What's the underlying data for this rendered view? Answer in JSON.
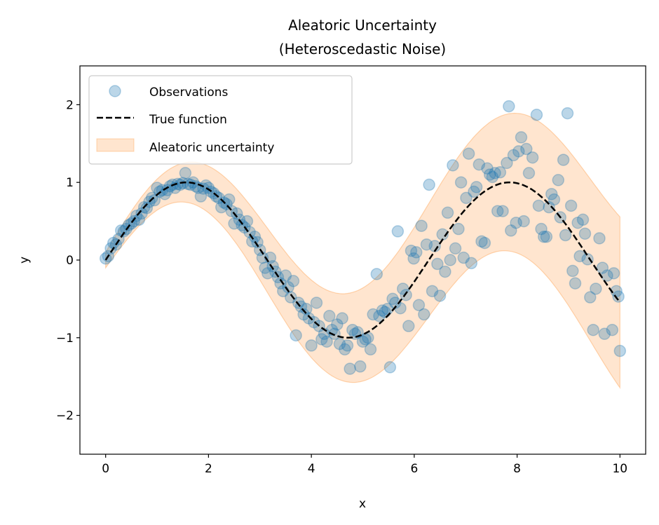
{
  "chart_data": {
    "type": "scatter",
    "title": "Aleatoric Uncertainty",
    "subtitle": "(Heteroscedastic Noise)",
    "xlabel": "x",
    "ylabel": "y",
    "xlim": [
      -0.5,
      10.5
    ],
    "ylim": [
      -2.5,
      2.5
    ],
    "xticks": [
      0,
      2,
      4,
      6,
      8,
      10
    ],
    "xtick_labels": [
      "0",
      "2",
      "4",
      "6",
      "8",
      "10"
    ],
    "yticks": [
      -2,
      -1,
      0,
      1,
      2
    ],
    "ytick_labels": [
      "−2",
      "−1",
      "0",
      "1",
      "2"
    ],
    "grid": false,
    "legend": {
      "placement": "top-left",
      "entries": [
        "Observations",
        "True function",
        "Aleatoric uncertainty"
      ]
    },
    "colors": {
      "observations": "#1f77b4",
      "true_function": "#000000",
      "band": "#ff7f0e"
    },
    "true_function": "sin(x)",
    "band": {
      "description_halfwidth": "0.1 + 0.1*x",
      "center": "sin(x)"
    },
    "observations": [
      [
        0,
        0.02
      ],
      [
        0.05,
        0.05
      ],
      [
        0.1,
        0.15
      ],
      [
        0.15,
        0.22
      ],
      [
        0.2,
        0.2
      ],
      [
        0.25,
        0.27
      ],
      [
        0.3,
        0.38
      ],
      [
        0.35,
        0.37
      ],
      [
        0.4,
        0.4
      ],
      [
        0.45,
        0.45
      ],
      [
        0.5,
        0.47
      ],
      [
        0.55,
        0.5
      ],
      [
        0.6,
        0.57
      ],
      [
        0.65,
        0.52
      ],
      [
        0.7,
        0.6
      ],
      [
        0.75,
        0.68
      ],
      [
        0.8,
        0.67
      ],
      [
        0.85,
        0.75
      ],
      [
        0.9,
        0.8
      ],
      [
        0.95,
        0.77
      ],
      [
        1.0,
        0.93
      ],
      [
        1.05,
        0.88
      ],
      [
        1.1,
        0.9
      ],
      [
        1.15,
        0.85
      ],
      [
        1.2,
        0.9
      ],
      [
        1.25,
        0.95
      ],
      [
        1.3,
        0.97
      ],
      [
        1.35,
        0.93
      ],
      [
        1.4,
        0.98
      ],
      [
        1.45,
        0.97
      ],
      [
        1.5,
        0.99
      ],
      [
        1.55,
        1.12
      ],
      [
        1.6,
        0.98
      ],
      [
        1.65,
        0.97
      ],
      [
        1.7,
        1.0
      ],
      [
        1.75,
        0.95
      ],
      [
        1.8,
        0.93
      ],
      [
        1.85,
        0.82
      ],
      [
        1.9,
        0.92
      ],
      [
        1.95,
        0.96
      ],
      [
        2.0,
        0.93
      ],
      [
        2.05,
        0.88
      ],
      [
        2.1,
        0.86
      ],
      [
        2.15,
        0.82
      ],
      [
        2.2,
        0.8
      ],
      [
        2.25,
        0.68
      ],
      [
        2.3,
        0.74
      ],
      [
        2.35,
        0.72
      ],
      [
        2.4,
        0.78
      ],
      [
        2.45,
        0.63
      ],
      [
        2.5,
        0.47
      ],
      [
        2.55,
        0.6
      ],
      [
        2.6,
        0.52
      ],
      [
        2.65,
        0.45
      ],
      [
        2.7,
        0.42
      ],
      [
        2.75,
        0.5
      ],
      [
        2.8,
        0.36
      ],
      [
        2.85,
        0.24
      ],
      [
        2.9,
        0.3
      ],
      [
        2.95,
        0.23
      ],
      [
        3.0,
        0.13
      ],
      [
        3.05,
        0.03
      ],
      [
        3.1,
        -0.1
      ],
      [
        3.15,
        -0.17
      ],
      [
        3.2,
        0.03
      ],
      [
        3.25,
        -0.08
      ],
      [
        3.3,
        -0.15
      ],
      [
        3.35,
        -0.22
      ],
      [
        3.4,
        -0.3
      ],
      [
        3.45,
        -0.4
      ],
      [
        3.5,
        -0.2
      ],
      [
        3.55,
        -0.35
      ],
      [
        3.6,
        -0.48
      ],
      [
        3.65,
        -0.27
      ],
      [
        3.7,
        -0.97
      ],
      [
        3.75,
        -0.55
      ],
      [
        3.8,
        -0.6
      ],
      [
        3.85,
        -0.7
      ],
      [
        3.9,
        -0.63
      ],
      [
        3.95,
        -0.75
      ],
      [
        4.0,
        -1.1
      ],
      [
        4.05,
        -0.8
      ],
      [
        4.1,
        -0.55
      ],
      [
        4.15,
        -0.85
      ],
      [
        4.2,
        -1.02
      ],
      [
        4.25,
        -0.95
      ],
      [
        4.3,
        -1.05
      ],
      [
        4.35,
        -0.72
      ],
      [
        4.4,
        -0.9
      ],
      [
        4.45,
        -0.95
      ],
      [
        4.5,
        -0.83
      ],
      [
        4.55,
        -1.08
      ],
      [
        4.6,
        -0.75
      ],
      [
        4.65,
        -1.15
      ],
      [
        4.7,
        -1.1
      ],
      [
        4.75,
        -1.4
      ],
      [
        4.8,
        -0.9
      ],
      [
        4.85,
        -0.95
      ],
      [
        4.9,
        -0.93
      ],
      [
        4.95,
        -1.37
      ],
      [
        5.0,
        -1.05
      ],
      [
        5.05,
        -1.02
      ],
      [
        5.1,
        -1.0
      ],
      [
        5.15,
        -1.15
      ],
      [
        5.2,
        -0.7
      ],
      [
        5.27,
        -0.18
      ],
      [
        5.32,
        -0.72
      ],
      [
        5.38,
        -0.65
      ],
      [
        5.43,
        -0.67
      ],
      [
        5.48,
        -0.63
      ],
      [
        5.53,
        -1.38
      ],
      [
        5.58,
        -0.5
      ],
      [
        5.63,
        -0.55
      ],
      [
        5.68,
        0.37
      ],
      [
        5.73,
        -0.62
      ],
      [
        5.78,
        -0.37
      ],
      [
        5.84,
        -0.45
      ],
      [
        5.89,
        -0.85
      ],
      [
        5.94,
        0.12
      ],
      [
        5.99,
        0.02
      ],
      [
        6.04,
        0.1
      ],
      [
        6.09,
        -0.58
      ],
      [
        6.14,
        0.44
      ],
      [
        6.19,
        -0.7
      ],
      [
        6.24,
        0.2
      ],
      [
        6.29,
        0.97
      ],
      [
        6.35,
        -0.4
      ],
      [
        6.4,
        0.18
      ],
      [
        6.45,
        -0.05
      ],
      [
        6.5,
        -0.46
      ],
      [
        6.55,
        0.33
      ],
      [
        6.6,
        -0.15
      ],
      [
        6.65,
        0.61
      ],
      [
        6.7,
        0.0
      ],
      [
        6.75,
        1.22
      ],
      [
        6.8,
        0.15
      ],
      [
        6.86,
        0.4
      ],
      [
        6.91,
        1.0
      ],
      [
        6.96,
        0.03
      ],
      [
        7.01,
        0.8
      ],
      [
        7.06,
        1.37
      ],
      [
        7.11,
        -0.04
      ],
      [
        7.16,
        0.88
      ],
      [
        7.21,
        0.94
      ],
      [
        7.26,
        1.23
      ],
      [
        7.31,
        0.24
      ],
      [
        7.37,
        0.22
      ],
      [
        7.42,
        1.18
      ],
      [
        7.47,
        1.1
      ],
      [
        7.52,
        1.07
      ],
      [
        7.57,
        1.12
      ],
      [
        7.62,
        0.63
      ],
      [
        7.67,
        1.13
      ],
      [
        7.72,
        0.63
      ],
      [
        7.84,
        1.98
      ],
      [
        7.8,
        1.25
      ],
      [
        7.88,
        0.38
      ],
      [
        7.93,
        1.35
      ],
      [
        7.98,
        0.48
      ],
      [
        8.03,
        1.4
      ],
      [
        8.08,
        1.58
      ],
      [
        8.13,
        0.5
      ],
      [
        8.18,
        1.43
      ],
      [
        8.23,
        1.12
      ],
      [
        8.3,
        1.32
      ],
      [
        8.38,
        1.87
      ],
      [
        8.42,
        0.7
      ],
      [
        8.47,
        0.4
      ],
      [
        8.52,
        0.3
      ],
      [
        8.57,
        0.3
      ],
      [
        8.62,
        0.68
      ],
      [
        8.67,
        0.85
      ],
      [
        8.72,
        0.78
      ],
      [
        8.8,
        1.03
      ],
      [
        8.84,
        0.55
      ],
      [
        8.9,
        1.29
      ],
      [
        8.94,
        0.32
      ],
      [
        8.98,
        1.89
      ],
      [
        9.05,
        0.7
      ],
      [
        9.08,
        -0.14
      ],
      [
        9.13,
        -0.3
      ],
      [
        9.18,
        0.48
      ],
      [
        9.22,
        0.05
      ],
      [
        9.28,
        0.52
      ],
      [
        9.32,
        0.34
      ],
      [
        9.37,
        0.01
      ],
      [
        9.42,
        -0.48
      ],
      [
        9.48,
        -0.9
      ],
      [
        9.53,
        -0.37
      ],
      [
        9.6,
        0.28
      ],
      [
        9.66,
        -0.1
      ],
      [
        9.7,
        -0.95
      ],
      [
        9.75,
        -0.2
      ],
      [
        9.85,
        -0.9
      ],
      [
        9.88,
        -0.17
      ],
      [
        9.93,
        -0.4
      ],
      [
        9.97,
        -0.47
      ],
      [
        10.0,
        -1.17
      ]
    ]
  }
}
